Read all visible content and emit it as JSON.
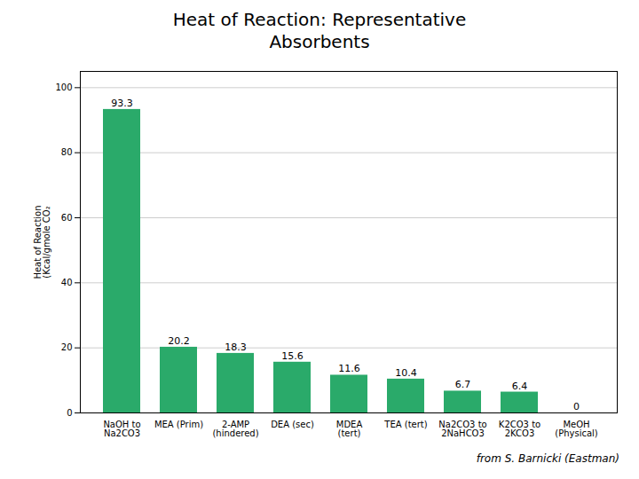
{
  "chart_data": {
    "type": "bar",
    "title": "Heat of Reaction: Representative\nAbsorbents",
    "ylabel": "Heat of Reaction\n(Kcal/gmole CO₂",
    "categories": [
      "NaOH to\nNa2CO3",
      "MEA (Prim)",
      "2-AMP\n(hindered)",
      "DEA (sec)",
      "MDEA\n(tert)",
      "TEA (tert)",
      "Na2CO3 to\n2NaHCO3",
      "K2CO3 to\n2KCO3",
      "MeOH\n(Physical)"
    ],
    "values": [
      93.3,
      20.2,
      18.3,
      15.6,
      11.6,
      10.4,
      6.7,
      6.4,
      0
    ],
    "color": "#2aaa6a",
    "ylim": [
      0,
      105
    ],
    "yticks": [
      0,
      20,
      40,
      60,
      80,
      100
    ],
    "grid": true,
    "data_labels": true,
    "annotations": [
      "from S. Barnicki (Eastman)"
    ]
  }
}
